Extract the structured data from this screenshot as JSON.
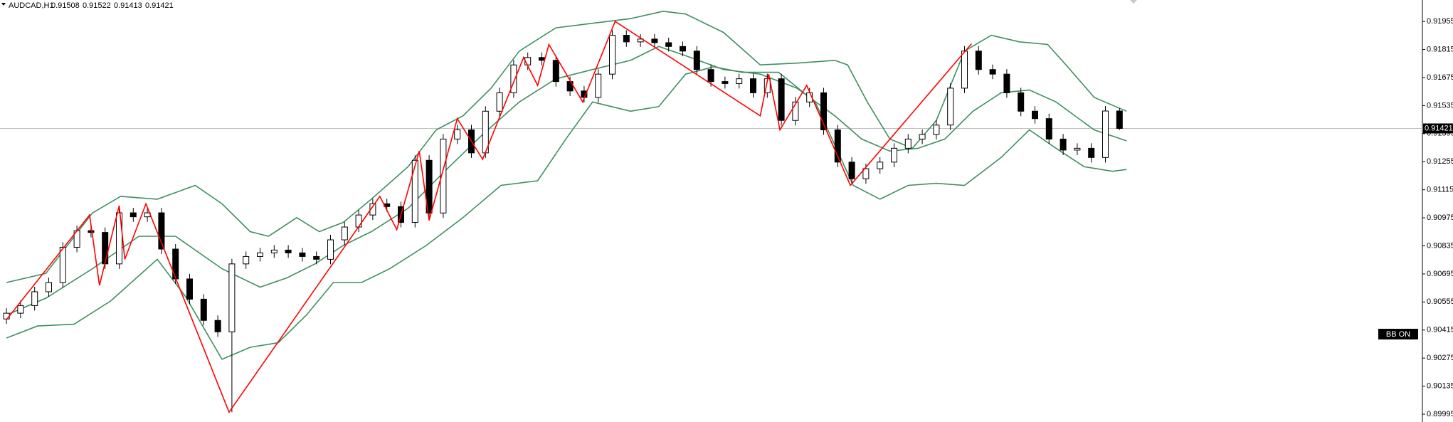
{
  "chart_data": {
    "type": "candlestick",
    "symbol": "AUDCAD,H1",
    "indicator_label": "BB ON",
    "ylim": [
      0.89956,
      0.92062
    ],
    "yticks": [
      0.91955,
      0.91815,
      0.91675,
      0.91535,
      0.91395,
      0.91255,
      0.91115,
      0.90975,
      0.90835,
      0.90695,
      0.90555,
      0.90415,
      0.90275,
      0.90135,
      0.89995
    ],
    "up_color": "#ffffff",
    "down_color": "#000000",
    "current_price_line": true,
    "open": [
      0.9047,
      0.90499,
      0.90537,
      0.90606,
      0.90652,
      0.90828,
      0.90911,
      0.90902,
      0.90745,
      0.91,
      0.9098,
      0.91,
      0.90819,
      0.9067,
      0.90569,
      0.90463,
      0.90406,
      0.90745,
      0.90782,
      0.908,
      0.90814,
      0.908,
      0.90782,
      0.90768,
      0.90865,
      0.90929,
      0.90989,
      0.91045,
      0.91031,
      0.90952,
      0.91262,
      0.90999,
      0.91368,
      0.91414,
      0.91299,
      0.91507,
      0.91599,
      0.91738,
      0.91775,
      0.91761,
      0.91655,
      0.91608,
      0.91576,
      0.91692,
      0.91886,
      0.91853,
      0.91867,
      0.91849,
      0.9183,
      0.91807,
      0.91715,
      0.91655,
      0.91645,
      0.91669,
      0.91599,
      0.91669,
      0.91461,
      0.91553,
      0.91599,
      0.91414,
      0.91253,
      0.9117,
      0.9122,
      0.91253,
      0.91322,
      0.91368,
      0.91391,
      0.91438,
      0.91622,
      0.91807,
      0.91715,
      0.91692,
      0.91599,
      0.91507,
      0.9147,
      0.91368,
      0.91313,
      0.91322,
      0.91276,
      0.91508
    ],
    "high": [
      0.90524,
      0.90562,
      0.90631,
      0.90677,
      0.90853,
      0.90936,
      0.90936,
      0.90927,
      0.91025,
      0.91025,
      0.91025,
      0.91025,
      0.90844,
      0.90695,
      0.90594,
      0.90488,
      0.9077,
      0.90807,
      0.90825,
      0.90839,
      0.90839,
      0.90825,
      0.90807,
      0.9089,
      0.90954,
      0.91014,
      0.9107,
      0.9107,
      0.91056,
      0.91287,
      0.91287,
      0.91393,
      0.91439,
      0.91439,
      0.91532,
      0.91624,
      0.91763,
      0.918,
      0.918,
      0.91786,
      0.9168,
      0.91633,
      0.91717,
      0.91911,
      0.91911,
      0.91892,
      0.91892,
      0.91874,
      0.91855,
      0.91832,
      0.9174,
      0.9168,
      0.91694,
      0.91694,
      0.91694,
      0.91694,
      0.91578,
      0.91624,
      0.91624,
      0.91439,
      0.91278,
      0.91245,
      0.91278,
      0.91347,
      0.91393,
      0.91416,
      0.91463,
      0.91647,
      0.91832,
      0.91832,
      0.9174,
      0.91717,
      0.91624,
      0.91532,
      0.91495,
      0.91393,
      0.91347,
      0.91347,
      0.91533,
      0.91522
    ],
    "low": [
      0.90445,
      0.90474,
      0.90512,
      0.90581,
      0.90627,
      0.90803,
      0.90877,
      0.9072,
      0.9072,
      0.90955,
      0.90955,
      0.90794,
      0.90645,
      0.90544,
      0.90438,
      0.90381,
      0.90005,
      0.9072,
      0.90757,
      0.90775,
      0.90775,
      0.90757,
      0.90743,
      0.90743,
      0.9084,
      0.90904,
      0.90964,
      0.91006,
      0.90927,
      0.90927,
      0.90974,
      0.90974,
      0.91343,
      0.91274,
      0.91274,
      0.91482,
      0.91574,
      0.91713,
      0.91736,
      0.9163,
      0.91583,
      0.91551,
      0.91551,
      0.91667,
      0.91828,
      0.91828,
      0.91824,
      0.91805,
      0.91782,
      0.9169,
      0.9163,
      0.9162,
      0.9162,
      0.91574,
      0.91574,
      0.91436,
      0.91436,
      0.91528,
      0.91389,
      0.91228,
      0.91145,
      0.91145,
      0.91195,
      0.91228,
      0.91297,
      0.91343,
      0.91366,
      0.91413,
      0.91597,
      0.9169,
      0.91667,
      0.91574,
      0.91482,
      0.91445,
      0.91343,
      0.91288,
      0.91288,
      0.91251,
      0.91251,
      0.91413
    ],
    "close": [
      0.90499,
      0.90537,
      0.90606,
      0.90652,
      0.90828,
      0.90911,
      0.90902,
      0.90745,
      0.91,
      0.9098,
      0.91,
      0.90819,
      0.9067,
      0.90569,
      0.90463,
      0.90406,
      0.90745,
      0.90782,
      0.908,
      0.90814,
      0.908,
      0.90782,
      0.90768,
      0.90865,
      0.90929,
      0.90989,
      0.91045,
      0.91031,
      0.90952,
      0.91262,
      0.90999,
      0.91368,
      0.91414,
      0.91299,
      0.91507,
      0.91599,
      0.91738,
      0.91775,
      0.91761,
      0.91655,
      0.91608,
      0.91576,
      0.91692,
      0.91886,
      0.91853,
      0.91867,
      0.91849,
      0.9183,
      0.91807,
      0.91715,
      0.91655,
      0.91645,
      0.91669,
      0.91599,
      0.91669,
      0.91461,
      0.91553,
      0.91599,
      0.91414,
      0.91253,
      0.9117,
      0.9122,
      0.91253,
      0.91322,
      0.91368,
      0.91391,
      0.91438,
      0.91622,
      0.91807,
      0.91715,
      0.91692,
      0.91599,
      0.91507,
      0.9147,
      0.91368,
      0.91313,
      0.91322,
      0.91276,
      0.91508,
      0.91421
    ],
    "bands": [
      {
        "color": "#3f8f5f",
        "x": [
          0,
          2.8,
          6.1,
          8.1,
          10.7,
          13.4,
          15.3,
          17.3,
          18.6,
          20.6,
          22.2,
          23.9,
          25.9,
          28.5,
          30.5,
          32.4,
          34.4,
          36.4,
          39.0,
          41.6,
          44.3,
          46.6,
          48.2,
          50.9,
          53.5,
          56.1,
          58.8,
          59.7,
          61.1,
          62.7,
          64.3,
          66.0,
          68.0,
          69.9,
          71.9,
          73.9,
          75.2,
          77.2,
          79.5
        ],
        "values": [
          0.90652,
          0.90698,
          0.90999,
          0.91082,
          0.91068,
          0.91137,
          0.91045,
          0.90906,
          0.90883,
          0.90976,
          0.90906,
          0.90952,
          0.91068,
          0.9123,
          0.91414,
          0.91484,
          0.91622,
          0.91807,
          0.91923,
          0.91946,
          0.91969,
          0.92006,
          0.91992,
          0.919,
          0.91738,
          0.91747,
          0.91761,
          0.91738,
          0.91553,
          0.91368,
          0.91322,
          0.91461,
          0.91807,
          0.91886,
          0.91853,
          0.9184,
          0.91738,
          0.91576,
          0.91507
        ]
      },
      {
        "color": "#3f8f5f",
        "x": [
          0,
          2.8,
          6.1,
          9.4,
          12.0,
          15.3,
          18.0,
          19.9,
          21.9,
          23.9,
          25.9,
          28.5,
          31.1,
          33.8,
          36.4,
          39.0,
          41.6,
          44.3,
          46.3,
          48.2,
          50.9,
          53.5,
          56.1,
          58.8,
          60.7,
          62.7,
          64.7,
          66.6,
          68.6,
          70.6,
          72.6,
          74.5,
          77.2,
          79.5
        ],
        "values": [
          0.9049,
          0.90574,
          0.90721,
          0.90883,
          0.90883,
          0.90721,
          0.90629,
          0.90675,
          0.90745,
          0.90837,
          0.90906,
          0.91022,
          0.91207,
          0.91391,
          0.91553,
          0.91669,
          0.91715,
          0.91761,
          0.9183,
          0.91784,
          0.91715,
          0.91692,
          0.91622,
          0.91484,
          0.91368,
          0.91308,
          0.91322,
          0.91368,
          0.91507,
          0.91599,
          0.91613,
          0.91553,
          0.91414,
          0.91359
        ]
      },
      {
        "color": "#3f8f5f",
        "x": [
          0,
          2.2,
          4.8,
          7.4,
          10.7,
          12.7,
          15.3,
          17.3,
          19.3,
          21.3,
          23.2,
          25.2,
          27.2,
          29.8,
          32.4,
          35.1,
          37.7,
          39.7,
          41.6,
          44.3,
          46.3,
          48.2,
          50.2,
          52.2,
          54.8,
          57.4,
          60.1,
          62.0,
          64.0,
          66.0,
          68.0,
          70.6,
          72.6,
          74.5,
          76.5,
          78.5,
          79.5
        ],
        "values": [
          0.90375,
          0.90435,
          0.90444,
          0.9056,
          0.90768,
          0.90583,
          0.90269,
          0.90329,
          0.90352,
          0.9049,
          0.90652,
          0.90652,
          0.90721,
          0.90837,
          0.90976,
          0.91137,
          0.9116,
          0.91368,
          0.91553,
          0.91507,
          0.9153,
          0.91692,
          0.91729,
          0.91701,
          0.91701,
          0.91553,
          0.91137,
          0.91068,
          0.91137,
          0.91147,
          0.91137,
          0.91276,
          0.91414,
          0.91322,
          0.9123,
          0.91207,
          0.91216
        ]
      }
    ],
    "zigzag": {
      "color": "#ff0000",
      "x": [
        0,
        5.9,
        6.6,
        8.0,
        8.4,
        9.9,
        12.0,
        15.8,
        26.5,
        27.7,
        29.3,
        30.0,
        32.0,
        33.8,
        36.7,
        37.7,
        38.5,
        40.9,
        43.2,
        53.5,
        54.1,
        54.9,
        56.8,
        59.9,
        68.5
      ],
      "values": [
        0.90467,
        0.90989,
        0.90638,
        0.91036,
        0.90768,
        0.91045,
        0.90675,
        0.90005,
        0.91082,
        0.90916,
        0.91308,
        0.90962,
        0.9147,
        0.91267,
        0.91775,
        0.91636,
        0.9184,
        0.91553,
        0.91955,
        0.91484,
        0.91692,
        0.91414,
        0.91636,
        0.91137,
        0.91844
      ]
    }
  }
}
